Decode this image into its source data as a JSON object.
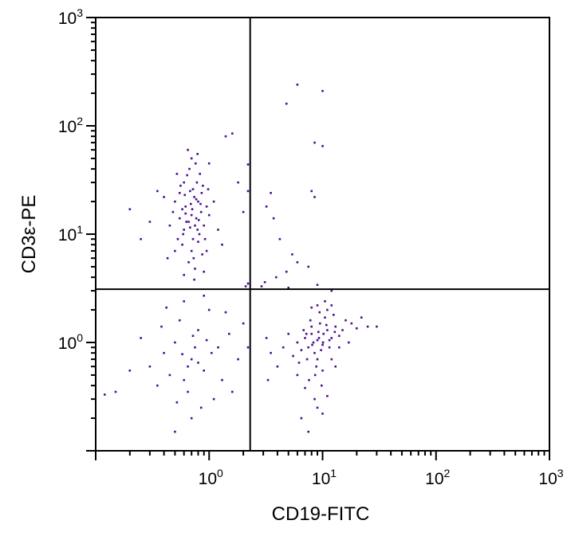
{
  "chart_data": {
    "type": "scatter",
    "title": "",
    "xlabel": "CD19-FITC",
    "ylabel": "CD3ε-PE",
    "xscale": "log",
    "yscale": "log",
    "xlim": [
      0.1,
      1000
    ],
    "ylim": [
      0.1,
      1000
    ],
    "x_tick_labels": [
      {
        "base": "10",
        "exp": "0",
        "value": 1
      },
      {
        "base": "10",
        "exp": "1",
        "value": 10
      },
      {
        "base": "10",
        "exp": "2",
        "value": 100
      },
      {
        "base": "10",
        "exp": "3",
        "value": 1000
      }
    ],
    "y_tick_labels": [
      {
        "base": "10",
        "exp": "0",
        "value": 1
      },
      {
        "base": "10",
        "exp": "1",
        "value": 10
      },
      {
        "base": "10",
        "exp": "2",
        "value": 100
      },
      {
        "base": "10",
        "exp": "3",
        "value": 1000
      }
    ],
    "grid": false,
    "legend": "none",
    "quadrant_gates": {
      "x": 2.3,
      "y": 3.1
    },
    "point_color": "#4b0f8c",
    "points": [
      [
        0.7,
        15
      ],
      [
        0.62,
        18
      ],
      [
        0.75,
        12
      ],
      [
        0.8,
        20
      ],
      [
        0.55,
        14
      ],
      [
        0.68,
        25
      ],
      [
        0.72,
        9
      ],
      [
        0.85,
        16
      ],
      [
        0.6,
        11
      ],
      [
        0.78,
        30
      ],
      [
        0.5,
        20
      ],
      [
        0.66,
        13
      ],
      [
        0.9,
        12
      ],
      [
        0.58,
        8
      ],
      [
        0.74,
        22
      ],
      [
        0.82,
        10
      ],
      [
        0.64,
        35
      ],
      [
        0.7,
        7
      ],
      [
        0.95,
        18
      ],
      [
        0.48,
        16
      ],
      [
        0.69,
        19
      ],
      [
        0.77,
        14
      ],
      [
        0.61,
        23
      ],
      [
        0.86,
        24
      ],
      [
        0.73,
        6
      ],
      [
        0.56,
        28
      ],
      [
        0.8,
        8.5
      ],
      [
        1.0,
        15
      ],
      [
        0.45,
        12
      ],
      [
        0.67,
        40
      ],
      [
        0.76,
        45
      ],
      [
        0.59,
        10
      ],
      [
        0.88,
        28
      ],
      [
        0.71,
        17
      ],
      [
        0.63,
        13
      ],
      [
        0.79,
        11
      ],
      [
        0.53,
        9
      ],
      [
        0.84,
        19
      ],
      [
        0.66,
        5.5
      ],
      [
        0.92,
        9
      ],
      [
        0.4,
        22
      ],
      [
        0.7,
        50
      ],
      [
        0.6,
        30
      ],
      [
        1.1,
        20
      ],
      [
        0.75,
        4.8
      ],
      [
        0.5,
        7
      ],
      [
        0.83,
        36
      ],
      [
        0.58,
        17
      ],
      [
        0.35,
        25
      ],
      [
        0.3,
        13
      ],
      [
        1.2,
        11
      ],
      [
        0.65,
        60
      ],
      [
        0.95,
        7
      ],
      [
        0.72,
        26
      ],
      [
        0.81,
        13.5
      ],
      [
        0.62,
        15.5
      ],
      [
        0.68,
        11.5
      ],
      [
        0.77,
        21
      ],
      [
        0.55,
        24
      ],
      [
        0.87,
        6.5
      ],
      [
        0.52,
        36
      ],
      [
        0.98,
        26
      ],
      [
        0.25,
        9
      ],
      [
        0.2,
        17
      ],
      [
        1.3,
        8
      ],
      [
        0.74,
        3.8
      ],
      [
        0.6,
        4.2
      ],
      [
        0.9,
        4.5
      ],
      [
        0.43,
        6
      ],
      [
        0.79,
        55
      ],
      [
        9,
        1.05
      ],
      [
        8,
        1.2
      ],
      [
        10,
        0.95
      ],
      [
        7.5,
        0.9
      ],
      [
        11,
        1.3
      ],
      [
        9.5,
        1.5
      ],
      [
        8.5,
        0.8
      ],
      [
        12,
        1.1
      ],
      [
        7,
        1.1
      ],
      [
        10.5,
        1.7
      ],
      [
        9,
        0.7
      ],
      [
        8,
        1.4
      ],
      [
        13,
        1.4
      ],
      [
        6.5,
        0.85
      ],
      [
        11.5,
        0.9
      ],
      [
        9.2,
        1.25
      ],
      [
        7.8,
        1.6
      ],
      [
        10.2,
        1.2
      ],
      [
        8.8,
        0.6
      ],
      [
        12.5,
        1.8
      ],
      [
        6,
        1.0
      ],
      [
        14,
        1.15
      ],
      [
        9.7,
        0.85
      ],
      [
        7.3,
        0.7
      ],
      [
        11,
        2.0
      ],
      [
        8.3,
        1.0
      ],
      [
        10.8,
        1.45
      ],
      [
        9.4,
        1.9
      ],
      [
        15,
        1.3
      ],
      [
        6.8,
        1.3
      ],
      [
        8.6,
        0.5
      ],
      [
        10,
        0.55
      ],
      [
        5.5,
        0.75
      ],
      [
        16,
        1.6
      ],
      [
        7.6,
        0.45
      ],
      [
        9.8,
        0.4
      ],
      [
        12,
        0.7
      ],
      [
        5,
        1.2
      ],
      [
        4.5,
        0.9
      ],
      [
        18,
        1.5
      ],
      [
        20,
        1.35
      ],
      [
        22,
        1.7
      ],
      [
        25,
        1.4
      ],
      [
        30,
        1.4
      ],
      [
        4,
        0.6
      ],
      [
        3.5,
        0.8
      ],
      [
        3.2,
        1.1
      ],
      [
        6,
        0.5
      ],
      [
        7,
        0.38
      ],
      [
        8.5,
        0.3
      ],
      [
        9,
        0.25
      ],
      [
        10,
        0.22
      ],
      [
        6.5,
        0.2
      ],
      [
        7.5,
        0.15
      ],
      [
        11,
        0.32
      ],
      [
        13,
        0.6
      ],
      [
        14,
        0.9
      ],
      [
        17,
        1.0
      ],
      [
        12,
        2.2
      ],
      [
        9,
        2.2
      ],
      [
        10.5,
        2.4
      ],
      [
        8,
        2.1
      ],
      [
        11.5,
        1.05
      ],
      [
        9.3,
        1.1
      ],
      [
        8.1,
        0.95
      ],
      [
        10.1,
        1.0
      ],
      [
        7.2,
        1.2
      ],
      [
        12.8,
        1.25
      ],
      [
        6.2,
        0.65
      ],
      [
        3.3,
        0.45
      ],
      [
        0.7,
        0.7
      ],
      [
        0.5,
        1.0
      ],
      [
        0.9,
        0.55
      ],
      [
        0.6,
        0.45
      ],
      [
        1.2,
        0.9
      ],
      [
        0.8,
        1.3
      ],
      [
        0.4,
        0.8
      ],
      [
        1.5,
        1.2
      ],
      [
        0.65,
        0.35
      ],
      [
        0.3,
        0.6
      ],
      [
        1.0,
        2.0
      ],
      [
        0.55,
        1.6
      ],
      [
        0.75,
        0.9
      ],
      [
        1.8,
        0.7
      ],
      [
        0.45,
        0.5
      ],
      [
        0.85,
        0.25
      ],
      [
        0.25,
        1.1
      ],
      [
        0.35,
        0.4
      ],
      [
        1.3,
        0.45
      ],
      [
        0.95,
        1.05
      ],
      [
        0.6,
        2.4
      ],
      [
        0.7,
        0.2
      ],
      [
        0.5,
        0.15
      ],
      [
        0.2,
        0.55
      ],
      [
        0.15,
        0.35
      ],
      [
        2.0,
        1.5
      ],
      [
        1.6,
        0.35
      ],
      [
        0.38,
        1.4
      ],
      [
        1.1,
        0.3
      ],
      [
        0.8,
        0.65
      ],
      [
        0.58,
        0.78
      ],
      [
        0.72,
        1.15
      ],
      [
        0.42,
        2.1
      ],
      [
        1.4,
        1.9
      ],
      [
        2.2,
        0.9
      ],
      [
        0.12,
        0.33
      ],
      [
        0.9,
        2.7
      ],
      [
        0.65,
        0.6
      ],
      [
        0.52,
        0.28
      ],
      [
        1.05,
        0.8
      ],
      [
        6,
        240
      ],
      [
        10,
        210
      ],
      [
        4.8,
        160
      ],
      [
        8.5,
        70
      ],
      [
        10,
        65
      ],
      [
        3.5,
        24
      ],
      [
        8,
        25
      ],
      [
        8.5,
        22
      ],
      [
        3.2,
        18
      ],
      [
        3.7,
        14
      ],
      [
        4.2,
        9
      ],
      [
        5.4,
        6.5
      ],
      [
        6,
        5.5
      ],
      [
        7.5,
        5
      ],
      [
        4.8,
        4.5
      ],
      [
        3.9,
        4
      ],
      [
        3.1,
        3.6
      ],
      [
        2.9,
        3.3
      ],
      [
        2.2,
        3.5
      ],
      [
        2.1,
        3.3
      ],
      [
        5,
        3.2
      ],
      [
        9,
        3.4
      ],
      [
        12,
        3.0
      ],
      [
        2.2,
        44
      ],
      [
        2.2,
        25
      ],
      [
        2.0,
        16
      ],
      [
        1.6,
        85
      ],
      [
        1.4,
        80
      ],
      [
        1.0,
        45
      ],
      [
        1.8,
        30
      ]
    ]
  }
}
